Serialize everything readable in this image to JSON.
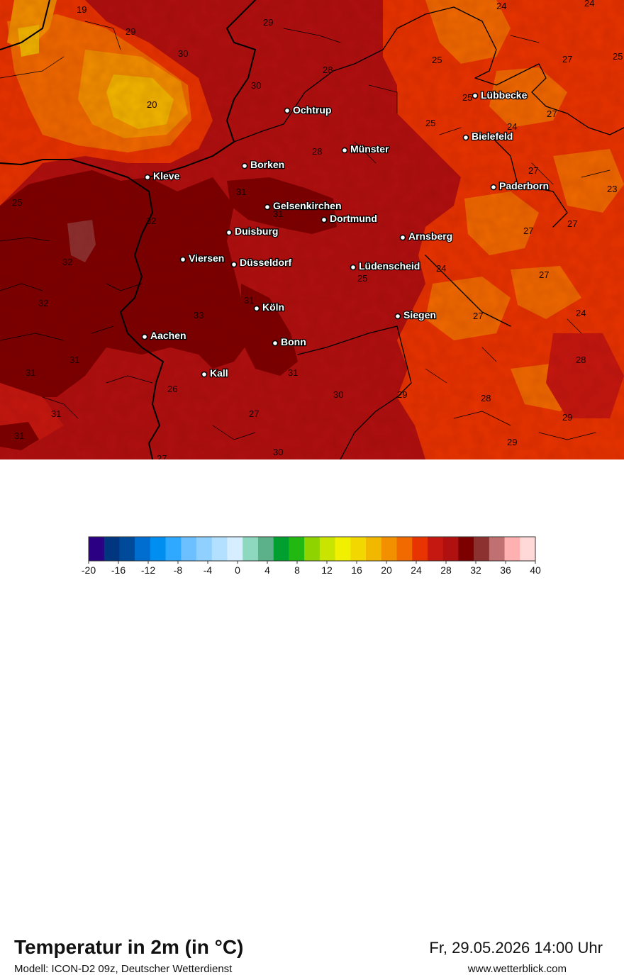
{
  "header": {
    "title": "Temperatur in 2m (in °C)",
    "subtitle": "Modell: ICON-D2 09z, Deutscher Wetterdienst",
    "datetime": "Fr, 29.05.2026 14:00 Uhr",
    "website": "www.wetterblick.com"
  },
  "map": {
    "cities": [
      {
        "name": "Ochtrup"
      },
      {
        "name": "Lübbecke"
      },
      {
        "name": "Bielefeld"
      },
      {
        "name": "Münster"
      },
      {
        "name": "Borken"
      },
      {
        "name": "Kleve"
      },
      {
        "name": "Paderborn"
      },
      {
        "name": "Gelsenkirchen"
      },
      {
        "name": "Dortmund"
      },
      {
        "name": "Duisburg"
      },
      {
        "name": "Arnsberg"
      },
      {
        "name": "Viersen"
      },
      {
        "name": "Düsseldorf"
      },
      {
        "name": "Lüdenscheid"
      },
      {
        "name": "Köln"
      },
      {
        "name": "Siegen"
      },
      {
        "name": "Aachen"
      },
      {
        "name": "Bonn"
      },
      {
        "name": "Kall"
      }
    ],
    "temperature_labels": [
      "19",
      "29",
      "29",
      "30",
      "24",
      "24",
      "25",
      "27",
      "25",
      "28",
      "30",
      "25",
      "20",
      "27",
      "25",
      "24",
      "28",
      "27",
      "23",
      "25",
      "31",
      "31",
      "27",
      "32",
      "27",
      "32",
      "24",
      "25",
      "27",
      "32",
      "31",
      "33",
      "24",
      "27",
      "31",
      "31",
      "28",
      "31",
      "26",
      "30",
      "29",
      "28",
      "31",
      "27",
      "29",
      "31",
      "29",
      "27",
      "30"
    ]
  },
  "legend": {
    "ticks": [
      "-20",
      "-16",
      "-12",
      "-8",
      "-4",
      "0",
      "4",
      "8",
      "12",
      "16",
      "20",
      "24",
      "28",
      "32",
      "36",
      "40"
    ],
    "colors": [
      "#2b0082",
      "#00367f",
      "#004a9a",
      "#006ed0",
      "#008ff0",
      "#2fa8ff",
      "#6cc0ff",
      "#8fd0ff",
      "#b3e0ff",
      "#d6eeff",
      "#8ed8c0",
      "#5cb08a",
      "#00a030",
      "#22b812",
      "#8fd400",
      "#c8e400",
      "#f0f000",
      "#f2d800",
      "#f2b800",
      "#f29000",
      "#f06a00",
      "#e83400",
      "#c41810",
      "#b01010",
      "#7c0000",
      "#8c3030",
      "#c07070",
      "#ffb0b0",
      "#ffd8d8"
    ]
  }
}
